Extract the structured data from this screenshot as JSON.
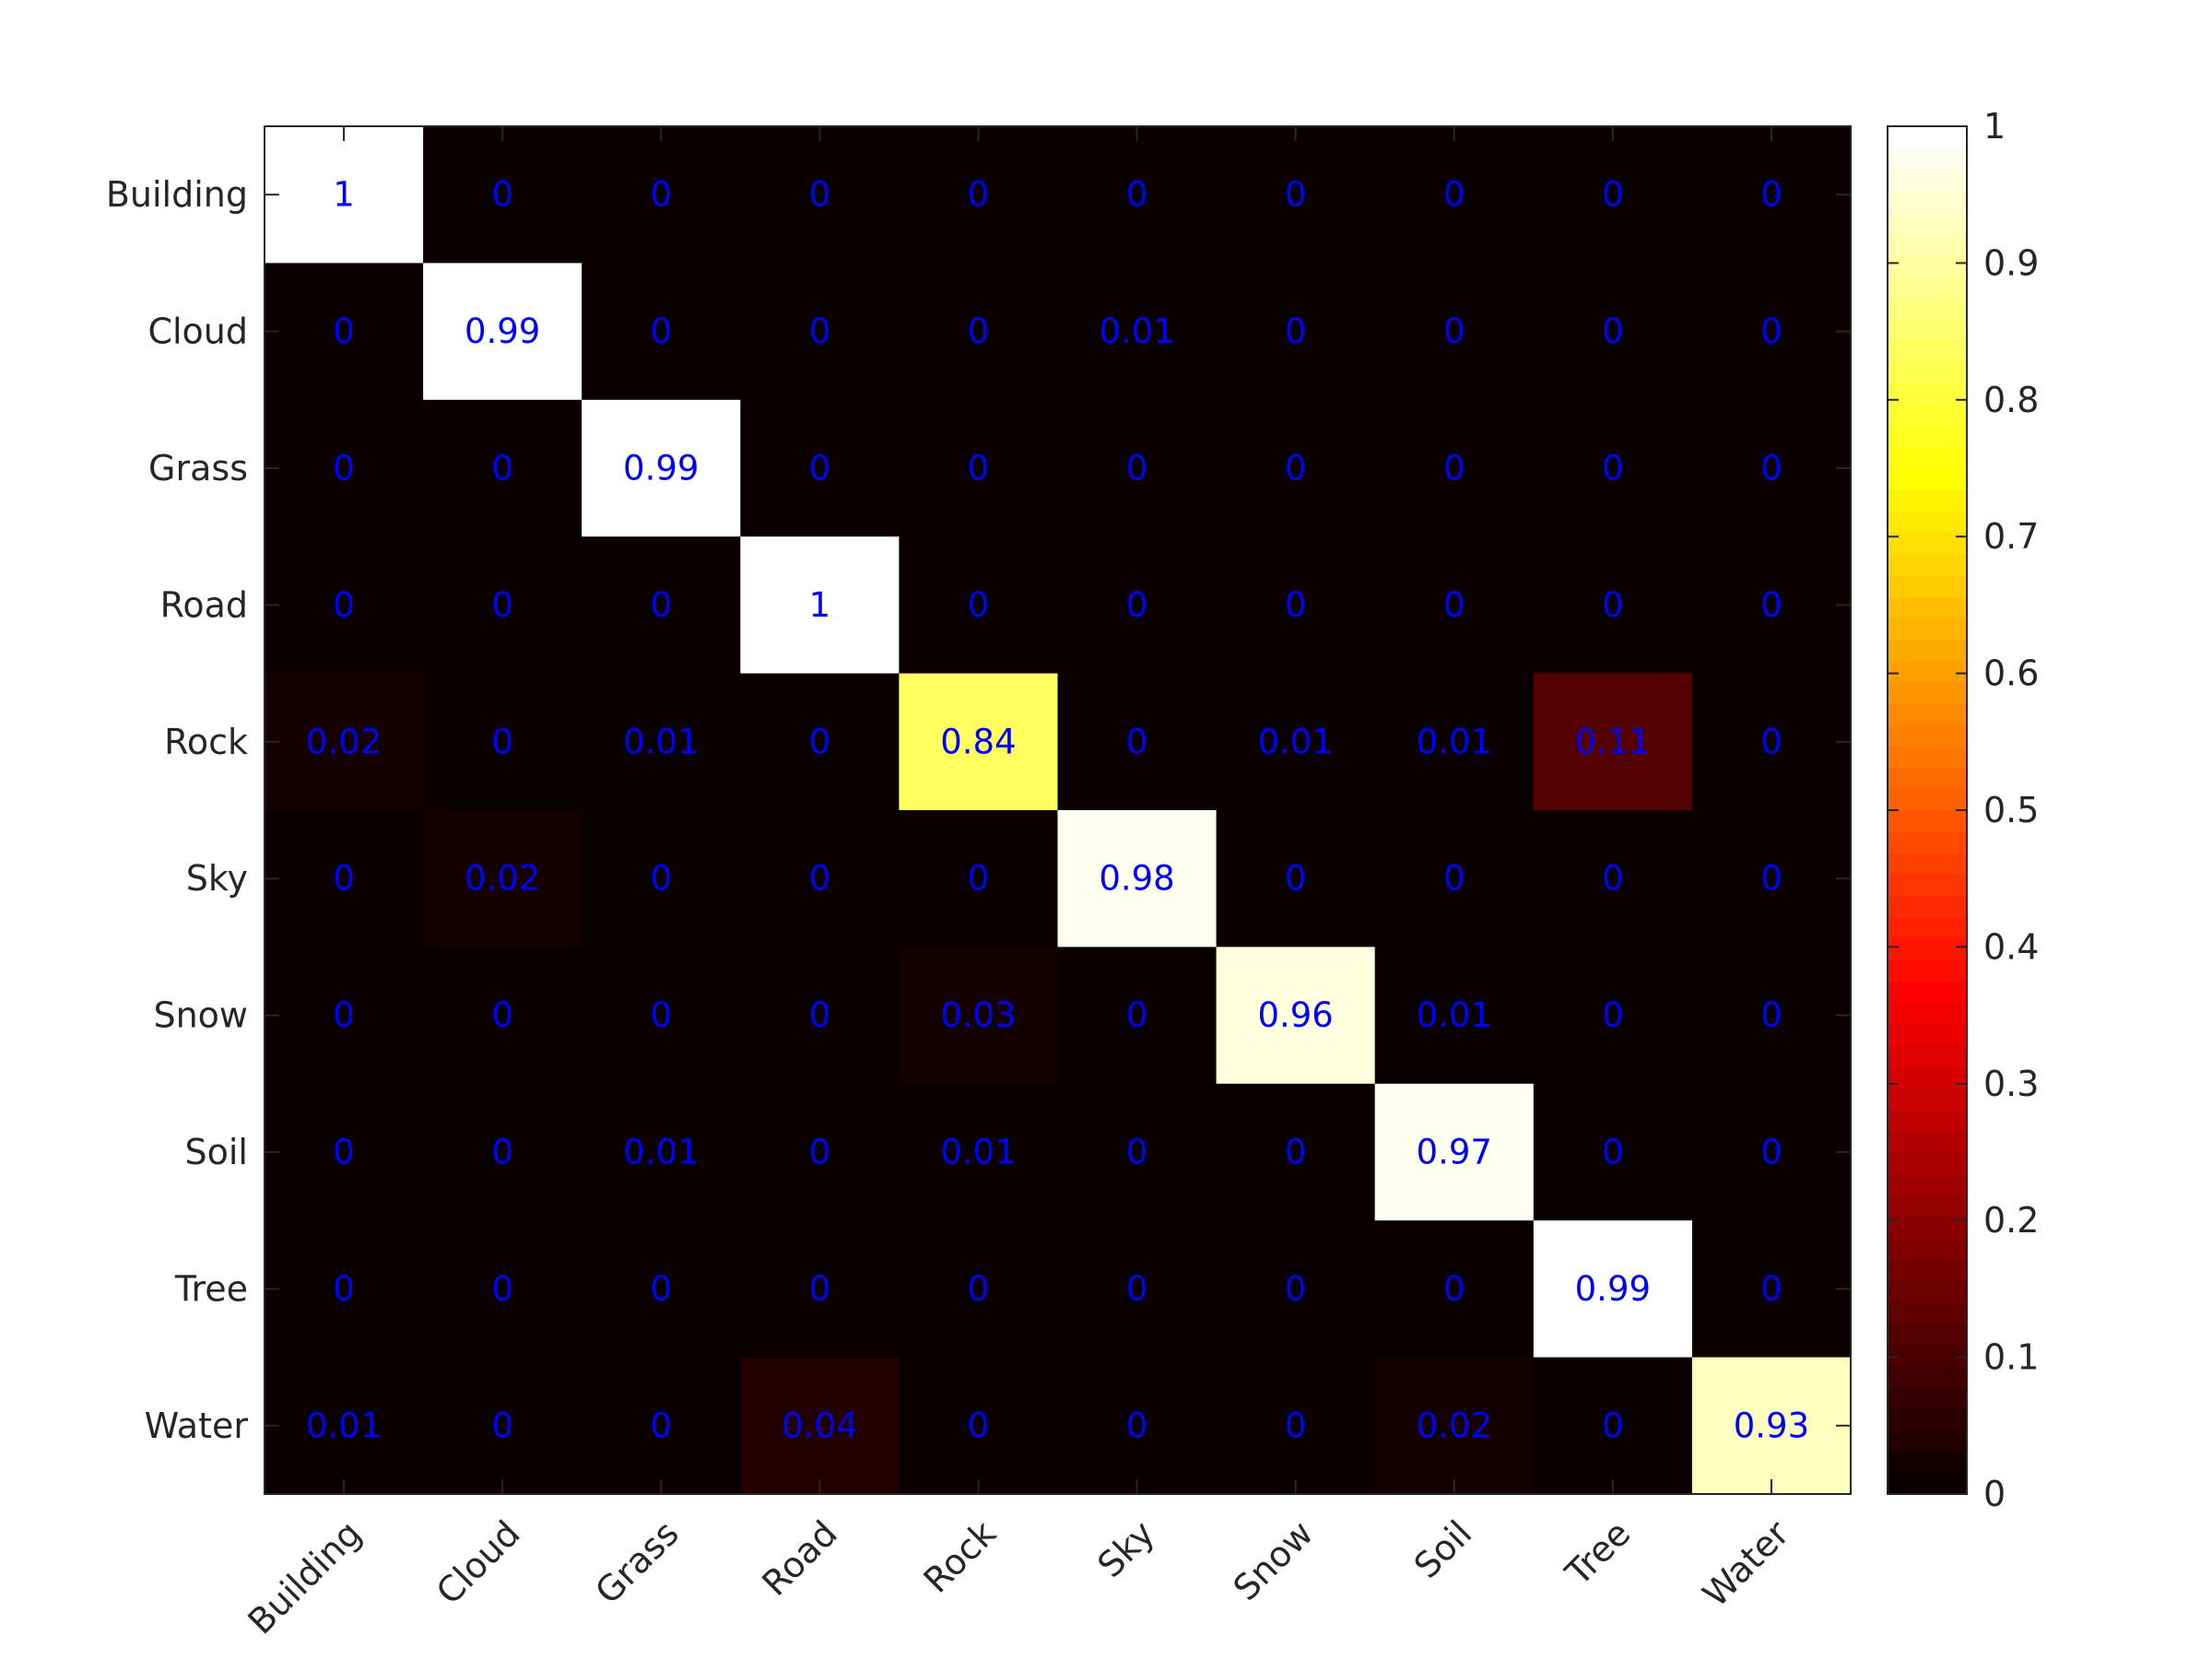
{
  "chart_data": {
    "type": "heatmap",
    "colormap": "hot",
    "row_labels": [
      "Building",
      "Cloud",
      "Grass",
      "Road",
      "Rock",
      "Sky",
      "Snow",
      "Soil",
      "Tree",
      "Water"
    ],
    "col_labels": [
      "Building",
      "Cloud",
      "Grass",
      "Road",
      "Rock",
      "Sky",
      "Snow",
      "Soil",
      "Tree",
      "Water"
    ],
    "values": [
      [
        1,
        0,
        0,
        0,
        0,
        0,
        0,
        0,
        0,
        0
      ],
      [
        0,
        0.99,
        0,
        0,
        0,
        0.01,
        0,
        0,
        0,
        0
      ],
      [
        0,
        0,
        0.99,
        0,
        0,
        0,
        0,
        0,
        0,
        0
      ],
      [
        0,
        0,
        0,
        1,
        0,
        0,
        0,
        0,
        0,
        0
      ],
      [
        0.02,
        0,
        0.01,
        0,
        0.84,
        0,
        0.01,
        0.01,
        0.11,
        0
      ],
      [
        0,
        0.02,
        0,
        0,
        0,
        0.98,
        0,
        0,
        0,
        0
      ],
      [
        0,
        0,
        0,
        0,
        0.03,
        0,
        0.96,
        0.01,
        0,
        0
      ],
      [
        0,
        0,
        0.01,
        0,
        0.01,
        0,
        0,
        0.97,
        0,
        0
      ],
      [
        0,
        0,
        0,
        0,
        0,
        0,
        0,
        0,
        0.99,
        0
      ],
      [
        0.01,
        0,
        0,
        0.04,
        0,
        0,
        0,
        0.02,
        0,
        0.93
      ]
    ],
    "value_text_color": "#0000ff",
    "colorbar": {
      "range": [
        0,
        1
      ],
      "ticks": [
        "0",
        "0.1",
        "0.2",
        "0.3",
        "0.4",
        "0.5",
        "0.6",
        "0.7",
        "0.8",
        "0.9",
        "1"
      ]
    },
    "title": "",
    "xlabel": "",
    "ylabel": ""
  }
}
